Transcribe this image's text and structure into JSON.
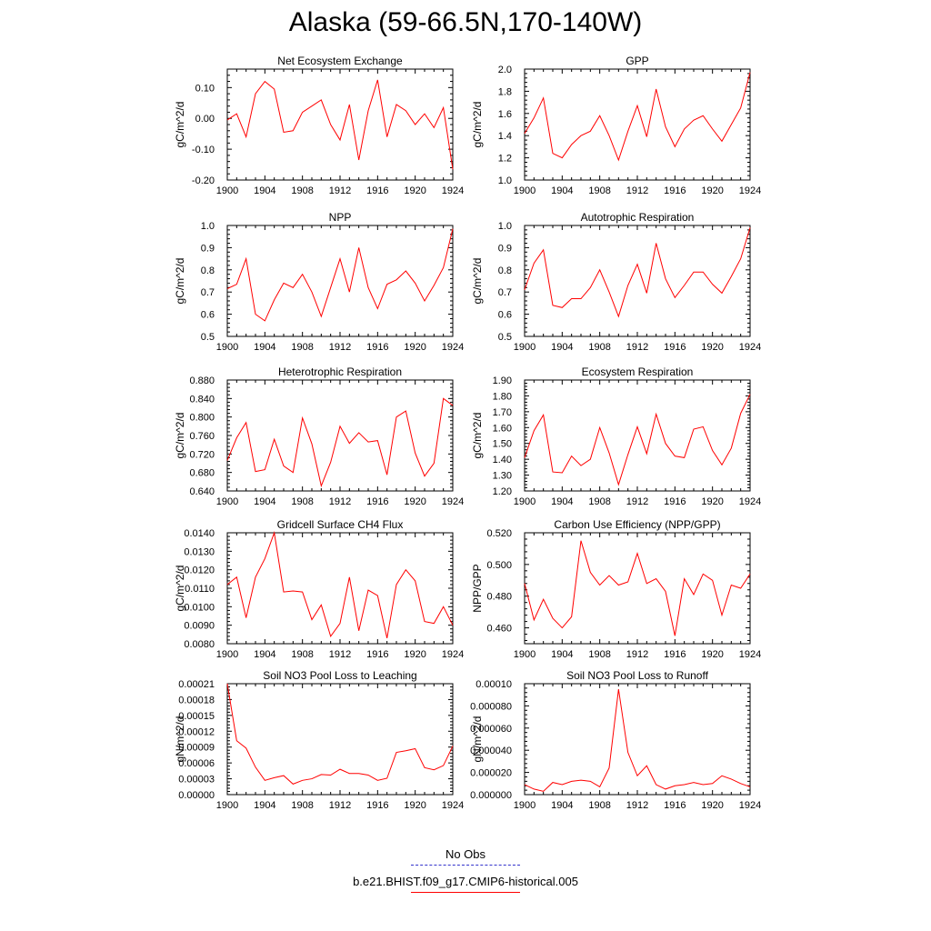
{
  "title": "Alaska (59-66.5N,170-140W)",
  "colors": {
    "series": "#ff0000",
    "obs": "#3333cc",
    "axis": "#000000"
  },
  "legend": {
    "entries": [
      {
        "label": "No Obs",
        "style": "dashed",
        "color": "#3333cc"
      },
      {
        "label": "b.e21.BHIST.f09_g17.CMIP6-historical.005",
        "style": "solid",
        "color": "#ff0000"
      }
    ]
  },
  "chart_data": [
    {
      "type": "line",
      "title": "Net Ecosystem Exchange",
      "ylabel": "gC/m^2/d",
      "xlim": [
        1900,
        1924
      ],
      "ylim": [
        -0.2,
        0.16
      ],
      "yticks": [
        -0.2,
        -0.1,
        0.0,
        0.1
      ],
      "ytick_labels": [
        "-0.20",
        "-0.10",
        "0.00",
        "0.10"
      ],
      "xticks": [
        1900,
        1904,
        1908,
        1912,
        1916,
        1920,
        1924
      ],
      "x": [
        1900,
        1901,
        1902,
        1903,
        1904,
        1905,
        1906,
        1907,
        1908,
        1909,
        1910,
        1911,
        1912,
        1913,
        1914,
        1915,
        1916,
        1917,
        1918,
        1919,
        1920,
        1921,
        1922,
        1923,
        1924
      ],
      "series": [
        {
          "values": [
            -0.005,
            0.015,
            -0.06,
            0.08,
            0.12,
            0.095,
            -0.045,
            -0.04,
            0.02,
            0.04,
            0.06,
            -0.02,
            -0.07,
            0.045,
            -0.135,
            0.025,
            0.125,
            -0.06,
            0.045,
            0.025,
            -0.02,
            0.015,
            -0.03,
            0.035,
            -0.165
          ]
        }
      ]
    },
    {
      "type": "line",
      "title": "GPP",
      "ylabel": "gC/m^2/d",
      "xlim": [
        1900,
        1924
      ],
      "ylim": [
        1.0,
        2.0
      ],
      "yticks": [
        1.0,
        1.2,
        1.4,
        1.6,
        1.8,
        2.0
      ],
      "ytick_labels": [
        "1.0",
        "1.2",
        "1.4",
        "1.6",
        "1.8",
        "2.0"
      ],
      "xticks": [
        1900,
        1904,
        1908,
        1912,
        1916,
        1920,
        1924
      ],
      "x": [
        1900,
        1901,
        1902,
        1903,
        1904,
        1905,
        1906,
        1907,
        1908,
        1909,
        1910,
        1911,
        1912,
        1913,
        1914,
        1915,
        1916,
        1917,
        1918,
        1919,
        1920,
        1921,
        1922,
        1923,
        1924
      ],
      "series": [
        {
          "values": [
            1.42,
            1.56,
            1.74,
            1.24,
            1.2,
            1.32,
            1.4,
            1.44,
            1.58,
            1.4,
            1.18,
            1.44,
            1.67,
            1.39,
            1.82,
            1.48,
            1.3,
            1.46,
            1.54,
            1.58,
            1.46,
            1.35,
            1.5,
            1.65,
            1.97
          ]
        }
      ]
    },
    {
      "type": "line",
      "title": "NPP",
      "ylabel": "gC/m^2/d",
      "xlim": [
        1900,
        1924
      ],
      "ylim": [
        0.5,
        1.0
      ],
      "yticks": [
        0.5,
        0.6,
        0.7,
        0.8,
        0.9,
        1.0
      ],
      "ytick_labels": [
        "0.5",
        "0.6",
        "0.7",
        "0.8",
        "0.9",
        "1.0"
      ],
      "xticks": [
        1900,
        1904,
        1908,
        1912,
        1916,
        1920,
        1924
      ],
      "x": [
        1900,
        1901,
        1902,
        1903,
        1904,
        1905,
        1906,
        1907,
        1908,
        1909,
        1910,
        1911,
        1912,
        1913,
        1914,
        1915,
        1916,
        1917,
        1918,
        1919,
        1920,
        1921,
        1922,
        1923,
        1924
      ],
      "series": [
        {
          "values": [
            0.715,
            0.735,
            0.85,
            0.6,
            0.57,
            0.665,
            0.74,
            0.72,
            0.78,
            0.7,
            0.59,
            0.72,
            0.85,
            0.7,
            0.9,
            0.72,
            0.625,
            0.735,
            0.755,
            0.795,
            0.74,
            0.66,
            0.73,
            0.81,
            0.985
          ]
        }
      ]
    },
    {
      "type": "line",
      "title": "Autotrophic Respiration",
      "ylabel": "gC/m^2/d",
      "xlim": [
        1900,
        1924
      ],
      "ylim": [
        0.5,
        1.0
      ],
      "yticks": [
        0.5,
        0.6,
        0.7,
        0.8,
        0.9,
        1.0
      ],
      "ytick_labels": [
        "0.5",
        "0.6",
        "0.7",
        "0.8",
        "0.9",
        "1.0"
      ],
      "xticks": [
        1900,
        1904,
        1908,
        1912,
        1916,
        1920,
        1924
      ],
      "x": [
        1900,
        1901,
        1902,
        1903,
        1904,
        1905,
        1906,
        1907,
        1908,
        1909,
        1910,
        1911,
        1912,
        1913,
        1914,
        1915,
        1916,
        1917,
        1918,
        1919,
        1920,
        1921,
        1922,
        1923,
        1924
      ],
      "series": [
        {
          "values": [
            0.71,
            0.83,
            0.89,
            0.64,
            0.63,
            0.67,
            0.67,
            0.72,
            0.8,
            0.7,
            0.59,
            0.73,
            0.825,
            0.695,
            0.92,
            0.76,
            0.675,
            0.73,
            0.79,
            0.79,
            0.735,
            0.695,
            0.77,
            0.85,
            0.99
          ]
        }
      ]
    },
    {
      "type": "line",
      "title": "Heterotrophic Respiration",
      "ylabel": "gC/m^2/d",
      "xlim": [
        1900,
        1924
      ],
      "ylim": [
        0.64,
        0.88
      ],
      "yticks": [
        0.64,
        0.68,
        0.72,
        0.76,
        0.8,
        0.84,
        0.88
      ],
      "ytick_labels": [
        "0.640",
        "0.680",
        "0.720",
        "0.760",
        "0.800",
        "0.840",
        "0.880"
      ],
      "xticks": [
        1900,
        1904,
        1908,
        1912,
        1916,
        1920,
        1924
      ],
      "x": [
        1900,
        1901,
        1902,
        1903,
        1904,
        1905,
        1906,
        1907,
        1908,
        1909,
        1910,
        1911,
        1912,
        1913,
        1914,
        1915,
        1916,
        1917,
        1918,
        1919,
        1920,
        1921,
        1922,
        1923,
        1924
      ],
      "series": [
        {
          "values": [
            0.706,
            0.755,
            0.788,
            0.682,
            0.686,
            0.752,
            0.694,
            0.68,
            0.798,
            0.742,
            0.651,
            0.702,
            0.78,
            0.743,
            0.766,
            0.746,
            0.749,
            0.675,
            0.8,
            0.813,
            0.722,
            0.672,
            0.7,
            0.84,
            0.825
          ]
        }
      ]
    },
    {
      "type": "line",
      "title": "Ecosystem Respiration",
      "ylabel": "gC/m^2/d",
      "xlim": [
        1900,
        1924
      ],
      "ylim": [
        1.2,
        1.9
      ],
      "yticks": [
        1.2,
        1.3,
        1.4,
        1.5,
        1.6,
        1.7,
        1.8,
        1.9
      ],
      "ytick_labels": [
        "1.20",
        "1.30",
        "1.40",
        "1.50",
        "1.60",
        "1.70",
        "1.80",
        "1.90"
      ],
      "xticks": [
        1900,
        1904,
        1908,
        1912,
        1916,
        1920,
        1924
      ],
      "x": [
        1900,
        1901,
        1902,
        1903,
        1904,
        1905,
        1906,
        1907,
        1908,
        1909,
        1910,
        1911,
        1912,
        1913,
        1914,
        1915,
        1916,
        1917,
        1918,
        1919,
        1920,
        1921,
        1922,
        1923,
        1924
      ],
      "series": [
        {
          "values": [
            1.41,
            1.58,
            1.68,
            1.32,
            1.315,
            1.42,
            1.36,
            1.4,
            1.6,
            1.44,
            1.24,
            1.43,
            1.605,
            1.435,
            1.685,
            1.5,
            1.42,
            1.41,
            1.59,
            1.605,
            1.455,
            1.365,
            1.47,
            1.69,
            1.81
          ]
        }
      ]
    },
    {
      "type": "line",
      "title": "Gridcell Surface CH4 Flux",
      "ylabel": "gC/m^2/d",
      "xlim": [
        1900,
        1924
      ],
      "ylim": [
        0.008,
        0.014
      ],
      "yticks": [
        0.008,
        0.009,
        0.01,
        0.011,
        0.012,
        0.013,
        0.014
      ],
      "ytick_labels": [
        "0.0080",
        "0.0090",
        "0.0100",
        "0.0110",
        "0.0120",
        "0.0130",
        "0.0140"
      ],
      "xticks": [
        1900,
        1904,
        1908,
        1912,
        1916,
        1920,
        1924
      ],
      "x": [
        1900,
        1901,
        1902,
        1903,
        1904,
        1905,
        1906,
        1907,
        1908,
        1909,
        1910,
        1911,
        1912,
        1913,
        1914,
        1915,
        1916,
        1917,
        1918,
        1919,
        1920,
        1921,
        1922,
        1923,
        1924
      ],
      "series": [
        {
          "values": [
            0.0112,
            0.0116,
            0.0094,
            0.0116,
            0.0126,
            0.014,
            0.0108,
            0.01085,
            0.0108,
            0.0093,
            0.0101,
            0.0084,
            0.0091,
            0.0116,
            0.0087,
            0.0109,
            0.0106,
            0.0083,
            0.0112,
            0.012,
            0.0114,
            0.0092,
            0.0091,
            0.01,
            0.009
          ]
        }
      ]
    },
    {
      "type": "line",
      "title": "Carbon Use Efficiency (NPP/GPP)",
      "ylabel": "NPP/GPP",
      "xlim": [
        1900,
        1924
      ],
      "ylim": [
        0.45,
        0.52
      ],
      "yticks": [
        0.46,
        0.48,
        0.5,
        0.52
      ],
      "ytick_labels": [
        "0.460",
        "0.480",
        "0.500",
        "0.520"
      ],
      "xticks": [
        1900,
        1904,
        1908,
        1912,
        1916,
        1920,
        1924
      ],
      "x": [
        1900,
        1901,
        1902,
        1903,
        1904,
        1905,
        1906,
        1907,
        1908,
        1909,
        1910,
        1911,
        1912,
        1913,
        1914,
        1915,
        1916,
        1917,
        1918,
        1919,
        1920,
        1921,
        1922,
        1923,
        1924
      ],
      "series": [
        {
          "values": [
            0.488,
            0.465,
            0.478,
            0.466,
            0.46,
            0.467,
            0.515,
            0.495,
            0.487,
            0.493,
            0.487,
            0.489,
            0.507,
            0.488,
            0.491,
            0.483,
            0.455,
            0.491,
            0.481,
            0.494,
            0.49,
            0.468,
            0.487,
            0.485,
            0.494
          ]
        }
      ]
    },
    {
      "type": "line",
      "title": "Soil NO3 Pool Loss to Leaching",
      "ylabel": "gN/m^2/d",
      "xlim": [
        1900,
        1924
      ],
      "ylim": [
        0.0,
        0.00021
      ],
      "yticks": [
        0,
        3e-05,
        6e-05,
        9e-05,
        0.00012,
        0.00015,
        0.00018,
        0.00021
      ],
      "ytick_labels": [
        "0.00000",
        "0.00003",
        "0.00006",
        "0.00009",
        "0.00012",
        "0.00015",
        "0.00018",
        "0.00021"
      ],
      "xticks": [
        1900,
        1904,
        1908,
        1912,
        1916,
        1920,
        1924
      ],
      "x": [
        1900,
        1901,
        1902,
        1903,
        1904,
        1905,
        1906,
        1907,
        1908,
        1909,
        1910,
        1911,
        1912,
        1913,
        1914,
        1915,
        1916,
        1917,
        1918,
        1919,
        1920,
        1921,
        1922,
        1923,
        1924
      ],
      "series": [
        {
          "values": [
            0.00021,
            0.000102,
            8.8e-05,
            5.2e-05,
            2.7e-05,
            3.2e-05,
            3.6e-05,
            2e-05,
            2.7e-05,
            3e-05,
            3.8e-05,
            3.7e-05,
            4.8e-05,
            4e-05,
            4e-05,
            3.7e-05,
            2.7e-05,
            3.1e-05,
            8e-05,
            8.3e-05,
            8.7e-05,
            5.1e-05,
            4.7e-05,
            5.5e-05,
            9.2e-05
          ]
        }
      ]
    },
    {
      "type": "line",
      "title": "Soil NO3 Pool Loss to Runoff",
      "ylabel": "gN/m^2/d",
      "xlim": [
        1900,
        1924
      ],
      "ylim": [
        0.0,
        0.0001
      ],
      "yticks": [
        0,
        2e-05,
        4e-05,
        6e-05,
        8e-05,
        0.0001
      ],
      "ytick_labels": [
        "0.000000",
        "0.000020",
        "0.000040",
        "0.000060",
        "0.000080",
        "0.00010"
      ],
      "xticks": [
        1900,
        1904,
        1908,
        1912,
        1916,
        1920,
        1924
      ],
      "x": [
        1900,
        1901,
        1902,
        1903,
        1904,
        1905,
        1906,
        1907,
        1908,
        1909,
        1910,
        1911,
        1912,
        1913,
        1914,
        1915,
        1916,
        1917,
        1918,
        1919,
        1920,
        1921,
        1922,
        1923,
        1924
      ],
      "series": [
        {
          "values": [
            9e-06,
            5e-06,
            3e-06,
            1.1e-05,
            9e-06,
            1.2e-05,
            1.3e-05,
            1.2e-05,
            7e-06,
            2.4e-05,
            9.5e-05,
            3.8e-05,
            1.7e-05,
            2.6e-05,
            9e-06,
            5e-06,
            8e-06,
            9e-06,
            1.1e-05,
            9e-06,
            1e-05,
            1.7e-05,
            1.4e-05,
            1e-05,
            7e-06
          ]
        }
      ]
    }
  ]
}
